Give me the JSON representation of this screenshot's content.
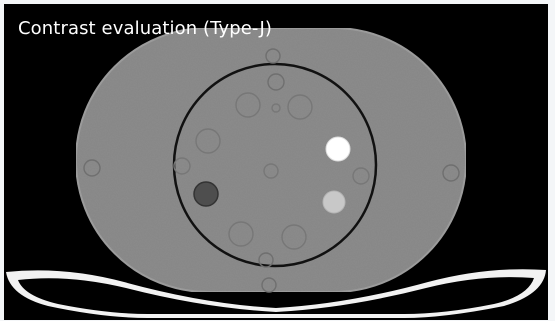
{
  "image": {
    "caption": "Contrast evaluation (Type-J)",
    "colors": {
      "background": "#000000",
      "phantom_body": "#8c8c8c",
      "phantom_edge": "#9a9a9a",
      "inner_ring": "#111111",
      "bright_insert": "#ffffff",
      "medium_insert": "#c8c8c8",
      "dark_insert": "#4e4e4e",
      "couch": "#f2f2f2"
    }
  }
}
